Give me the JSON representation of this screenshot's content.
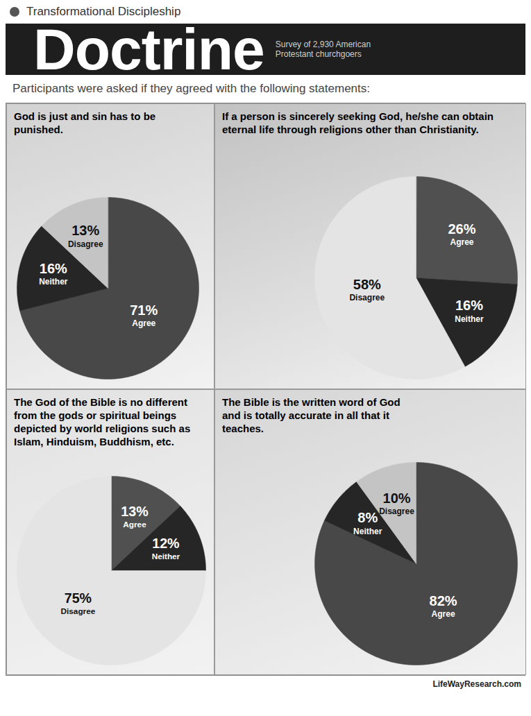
{
  "header": {
    "kicker": "Transformational Discipleship",
    "title": "Doctrine",
    "subtitle": "Survey of 2,930 American Protestant churchgoers",
    "intro": "Participants were asked if they agreed with the following statements:",
    "source": "LifeWayResearch.com"
  },
  "chart_data": [
    {
      "type": "pie",
      "title": "God is just and sin has to be punished.",
      "categories": [
        "Agree",
        "Neither",
        "Disagree"
      ],
      "values": [
        71,
        16,
        13
      ],
      "value_labels": [
        "71%",
        "16%",
        "13%"
      ],
      "colors": [
        "#484848",
        "#262626",
        "#c4c4c4"
      ],
      "data_labels": true
    },
    {
      "type": "pie",
      "title": "If a person is sincerely seeking God, he/she can obtain eternal life through religions other than Christianity.",
      "categories": [
        "Agree",
        "Neither",
        "Disagree"
      ],
      "values": [
        26,
        16,
        58
      ],
      "values_note_free": null,
      "value_labels": [
        "26%",
        "16%",
        "58%"
      ],
      "colors": [
        "#505050",
        "#262626",
        "#e4e4e4"
      ],
      "data_labels": true
    },
    {
      "type": "pie",
      "title": "The God of the Bible is no different from the gods or spiritual beings depicted by world religions such as Islam, Hinduism, Buddhism, etc.",
      "categories": [
        "Agree",
        "Neither",
        "Disagree"
      ],
      "values": [
        13,
        12,
        75
      ],
      "value_labels": [
        "13%",
        "12%",
        "75%"
      ],
      "colors": [
        "#505050",
        "#262626",
        "#e4e4e4"
      ],
      "data_labels": true
    },
    {
      "type": "pie",
      "title": "The Bible is the written word of God and is totally accurate in all that it teaches.",
      "categories": [
        "Agree",
        "Neither",
        "Disagree"
      ],
      "values": [
        82,
        8,
        10
      ],
      "value_labels": [
        "82%",
        "8%",
        "10%"
      ],
      "colors": [
        "#484848",
        "#262626",
        "#c4c4c4"
      ],
      "data_labels": true
    }
  ]
}
